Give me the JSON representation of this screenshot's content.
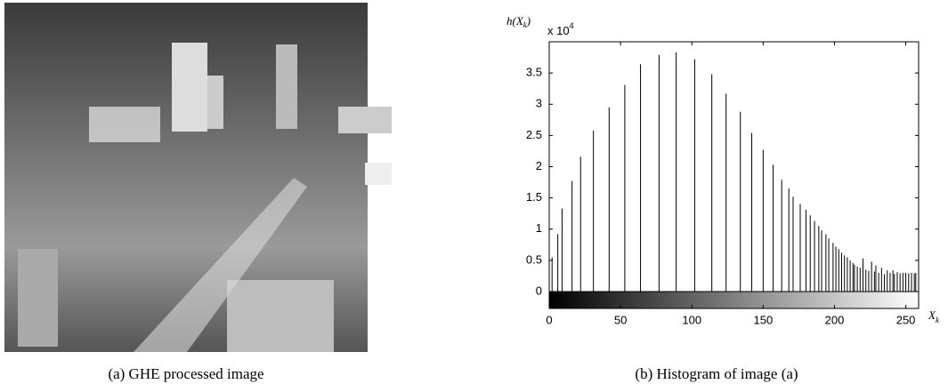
{
  "chart_data": {
    "type": "stem",
    "ylabel": [
      "h(X",
      "k",
      ")"
    ],
    "xlabel": [
      "X",
      "k"
    ],
    "scale_label": [
      "x 10",
      "4"
    ],
    "x": [
      2,
      6,
      9,
      16,
      22,
      31,
      42,
      53,
      64,
      77,
      89,
      102,
      114,
      124,
      134,
      142,
      150,
      157,
      163,
      168,
      171,
      176,
      180,
      183,
      186,
      189,
      191,
      194,
      196,
      199,
      201,
      203,
      205,
      207,
      209,
      211,
      213,
      214,
      216,
      218,
      220,
      222,
      224,
      226,
      228,
      229,
      231,
      233,
      235,
      237,
      239,
      241,
      242,
      244,
      246,
      248,
      250,
      252,
      254,
      256,
      257
    ],
    "values": [
      0.55,
      0.92,
      1.33,
      1.77,
      2.16,
      2.58,
      2.95,
      3.31,
      3.64,
      3.79,
      3.83,
      3.72,
      3.48,
      3.17,
      2.88,
      2.54,
      2.27,
      2.03,
      1.79,
      1.65,
      1.52,
      1.4,
      1.31,
      1.22,
      1.13,
      1.05,
      0.98,
      0.92,
      0.85,
      0.78,
      0.72,
      0.68,
      0.62,
      0.58,
      0.55,
      0.5,
      0.46,
      0.43,
      0.4,
      0.38,
      0.53,
      0.35,
      0.33,
      0.48,
      0.32,
      0.42,
      0.3,
      0.38,
      0.28,
      0.34,
      0.3,
      0.34,
      0.28,
      0.31,
      0.29,
      0.3,
      0.3,
      0.29,
      0.3,
      0.29,
      0.3
    ],
    "color": "#000000",
    "xlim": [
      0,
      259
    ],
    "xticks": [
      0,
      50,
      100,
      150,
      200,
      250
    ],
    "ylim": [
      -0.27,
      4
    ],
    "yticks": [
      0,
      0.5,
      1,
      1.5,
      2,
      2.5,
      3,
      3.5
    ]
  },
  "captions": [
    "(a)  GHE processed image",
    "(b)  Histogram of image (a)"
  ]
}
